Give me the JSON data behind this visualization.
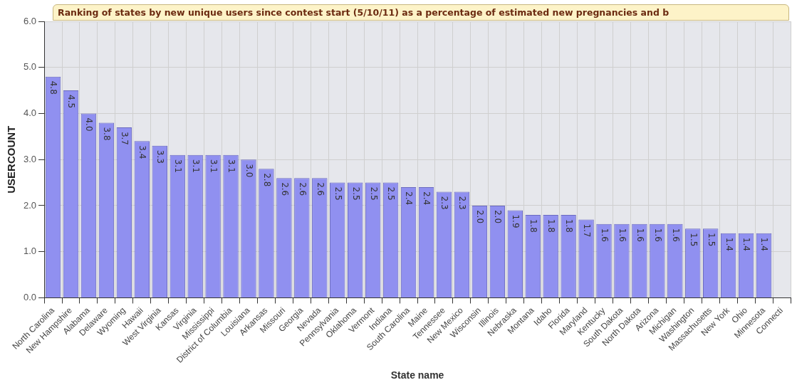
{
  "chart_data": {
    "type": "bar",
    "title": "Ranking of states by new unique users since contest start (5/10/11) as a percentage of estimated new pregnancies and b",
    "xlabel": "State name",
    "ylabel": "USERCOUNT",
    "categories": [
      "North Carolina",
      "New Hampshire",
      "Alabama",
      "Delaware",
      "Wyoming",
      "Hawaii",
      "West Virginia",
      "Kansas",
      "Virginia",
      "Mississippi",
      "District of Columbia",
      "Louisiana",
      "Arkansas",
      "Missouri",
      "Georgia",
      "Nevada",
      "Pennsylvania",
      "Oklahoma",
      "Vermont",
      "Indiana",
      "South Carolina",
      "Maine",
      "Tennessee",
      "New Mexico",
      "Wisconsin",
      "Illinois",
      "Nebraska",
      "Montana",
      "Idaho",
      "Florida",
      "Maryland",
      "Kentucky",
      "South Dakota",
      "North Dakota",
      "Arizona",
      "Michigan",
      "Washington",
      "Massachusetts",
      "New York",
      "Ohio",
      "Minnesota",
      "Connecti"
    ],
    "values": [
      4.8,
      4.5,
      4.0,
      3.8,
      3.7,
      3.4,
      3.3,
      3.1,
      3.1,
      3.1,
      3.1,
      3.0,
      2.8,
      2.6,
      2.6,
      2.6,
      2.5,
      2.5,
      2.5,
      2.5,
      2.4,
      2.4,
      2.3,
      2.3,
      2.0,
      2.0,
      1.9,
      1.8,
      1.8,
      1.8,
      1.7,
      1.6,
      1.6,
      1.6,
      1.6,
      1.6,
      1.5,
      1.5,
      1.4,
      1.4,
      1.4,
      null
    ],
    "color": "#9090f0",
    "ylim": [
      0,
      6
    ],
    "yticks": [
      {
        "value": 0,
        "label": "0.0"
      },
      {
        "value": 1,
        "label": "1.0"
      },
      {
        "value": 2,
        "label": "2.0"
      },
      {
        "value": 3,
        "label": "3.0"
      },
      {
        "value": 4,
        "label": "4.0"
      },
      {
        "value": 5,
        "label": "5.0"
      },
      {
        "value": 6,
        "label": "6.0"
      }
    ],
    "value_labels": [
      "4.8",
      "4.5",
      "4.0",
      "3.8",
      "3.7",
      "3.4",
      "3.3",
      "3.1",
      "3.1",
      "3.1",
      "3.1",
      "3.0",
      "2.8",
      "2.6",
      "2.6",
      "2.6",
      "2.5",
      "2.5",
      "2.5",
      "2.5",
      "2.4",
      "2.4",
      "2.3",
      "2.3",
      "2.0",
      "2.0",
      "1.9",
      "1.8",
      "1.8",
      "1.8",
      "1.7",
      "1.6",
      "1.6",
      "1.6",
      "1.6",
      "1.6",
      "1.5",
      "1.5",
      "1.4",
      "1.4",
      "1.4",
      null
    ],
    "grid": true
  }
}
